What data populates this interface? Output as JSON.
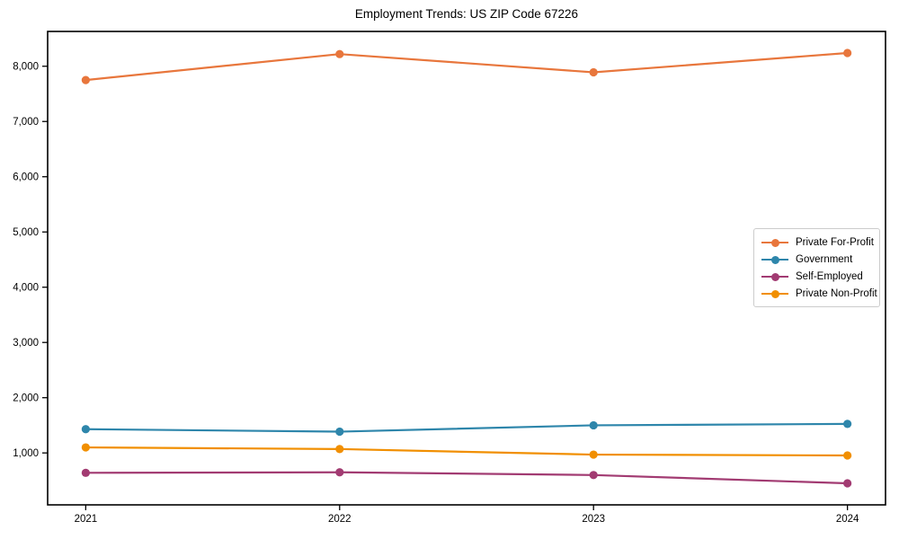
{
  "chart_data": {
    "type": "line",
    "title": "Employment Trends: US ZIP Code 67226",
    "xlabel": "",
    "ylabel": "",
    "categories": [
      "2021",
      "2022",
      "2023",
      "2024"
    ],
    "x": [
      2021,
      2022,
      2023,
      2024
    ],
    "series": [
      {
        "name": "Private For-Profit",
        "color": "#E8763C",
        "values": [
          7750,
          8220,
          7890,
          8240
        ]
      },
      {
        "name": "Government",
        "color": "#2E86AB",
        "values": [
          1430,
          1385,
          1500,
          1525
        ]
      },
      {
        "name": "Self-Employed",
        "color": "#A23B72",
        "values": [
          640,
          650,
          600,
          450
        ]
      },
      {
        "name": "Private Non-Profit",
        "color": "#F18F01",
        "values": [
          1100,
          1070,
          970,
          955
        ]
      }
    ],
    "yticks": [
      1000,
      2000,
      3000,
      4000,
      5000,
      6000,
      7000,
      8000
    ],
    "ytick_labels": [
      "1,000",
      "2,000",
      "3,000",
      "4,000",
      "5,000",
      "6,000",
      "7,000",
      "8,000"
    ],
    "xlim": [
      2020.85,
      2024.15
    ],
    "ylim": [
      60,
      8630
    ],
    "grid": false,
    "legend_position": "center right",
    "marker": "circle",
    "axis_color": "#000000",
    "legend_border_color": "#cccccc",
    "background_color": "#ffffff"
  }
}
